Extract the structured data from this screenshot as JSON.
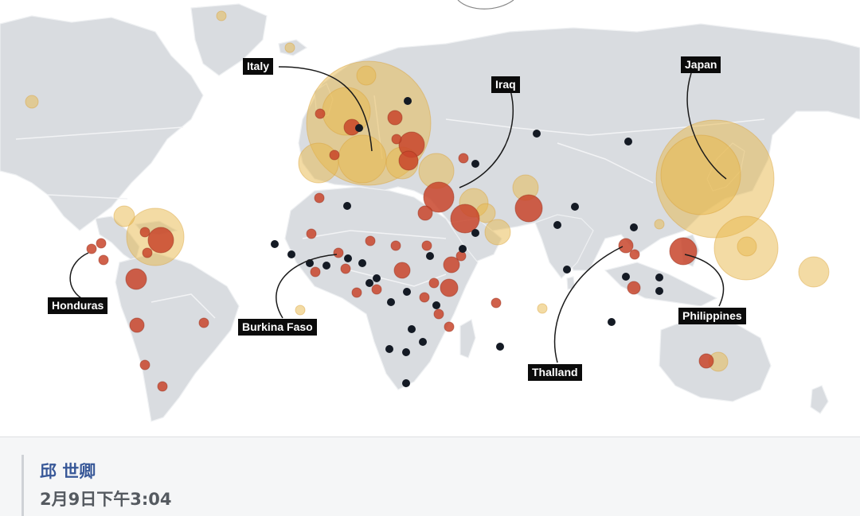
{
  "map": {
    "labels": [
      {
        "id": "italy",
        "text": "Italy"
      },
      {
        "id": "iraq",
        "text": "Iraq"
      },
      {
        "id": "japan",
        "text": "Japan"
      },
      {
        "id": "honduras",
        "text": "Honduras"
      },
      {
        "id": "burkina-faso",
        "text": "Burkina Faso"
      },
      {
        "id": "thailand",
        "text": "Thalland"
      },
      {
        "id": "philippines",
        "text": "Philippines"
      }
    ],
    "colors": {
      "land": "#d9dce0",
      "border": "#f2f3f5",
      "ocean": "#ffffff",
      "large_circle": "#e8b84a",
      "medium_circle": "#c8452b",
      "small_dot": "#141a24"
    }
  },
  "post": {
    "author": "邱 世卿",
    "timestamp": "2月9日下午3:04"
  }
}
